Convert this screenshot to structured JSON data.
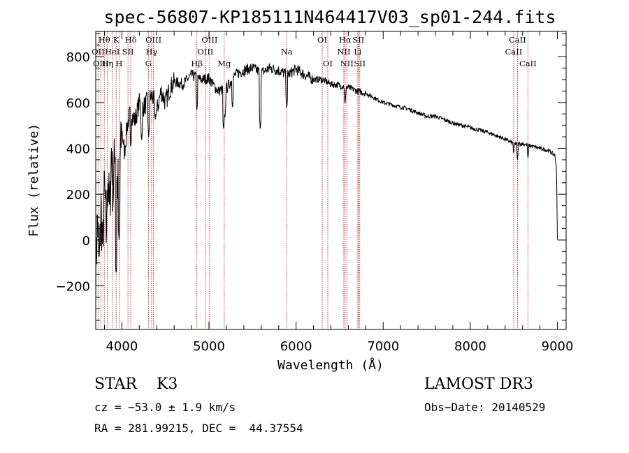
{
  "chart_data": {
    "type": "line",
    "title": "spec-56807-KP185111N464417V03_sp01-244.fits",
    "xlabel": "Wavelength (Å)",
    "ylabel": "Flux (relative)",
    "xlim": [
      3700,
      9100
    ],
    "ylim": [
      -390,
      910
    ],
    "x_ticks": [
      4000,
      5000,
      6000,
      7000,
      8000,
      9000
    ],
    "x_tick_labels": [
      "4000",
      "5000",
      "6000",
      "7000",
      "8000",
      "9000"
    ],
    "y_ticks": [
      -200,
      0,
      200,
      400,
      600,
      800
    ],
    "y_tick_labels": [
      "−200",
      "0",
      "200",
      "400",
      "600",
      "800"
    ],
    "series": [
      {
        "name": "flux",
        "anchors": [
          [
            3700,
            -150
          ],
          [
            3720,
            100
          ],
          [
            3740,
            -120
          ],
          [
            3760,
            150
          ],
          [
            3780,
            -50
          ],
          [
            3800,
            250
          ],
          [
            3820,
            20
          ],
          [
            3840,
            300
          ],
          [
            3860,
            100
          ],
          [
            3880,
            400
          ],
          [
            3900,
            200
          ],
          [
            3920,
            420
          ],
          [
            3940,
            250
          ],
          [
            3960,
            250
          ],
          [
            3980,
            350
          ],
          [
            4000,
            480
          ],
          [
            4030,
            380
          ],
          [
            4060,
            500
          ],
          [
            4100,
            560
          ],
          [
            4150,
            520
          ],
          [
            4200,
            600
          ],
          [
            4250,
            580
          ],
          [
            4300,
            610
          ],
          [
            4350,
            630
          ],
          [
            4400,
            560
          ],
          [
            4450,
            650
          ],
          [
            4500,
            600
          ],
          [
            4550,
            660
          ],
          [
            4600,
            690
          ],
          [
            4700,
            680
          ],
          [
            4800,
            720
          ],
          [
            4900,
            700
          ],
          [
            5000,
            705
          ],
          [
            5100,
            650
          ],
          [
            5200,
            660
          ],
          [
            5300,
            720
          ],
          [
            5400,
            740
          ],
          [
            5500,
            750
          ],
          [
            5600,
            730
          ],
          [
            5700,
            750
          ],
          [
            5800,
            740
          ],
          [
            5900,
            720
          ],
          [
            6000,
            745
          ],
          [
            6100,
            720
          ],
          [
            6200,
            700
          ],
          [
            6300,
            700
          ],
          [
            6400,
            680
          ],
          [
            6500,
            675
          ],
          [
            6600,
            665
          ],
          [
            6700,
            650
          ],
          [
            6800,
            640
          ],
          [
            6900,
            620
          ],
          [
            7000,
            600
          ],
          [
            7100,
            590
          ],
          [
            7200,
            580
          ],
          [
            7300,
            570
          ],
          [
            7400,
            555
          ],
          [
            7500,
            540
          ],
          [
            7600,
            540
          ],
          [
            7700,
            525
          ],
          [
            7800,
            510
          ],
          [
            7900,
            500
          ],
          [
            8000,
            490
          ],
          [
            8100,
            480
          ],
          [
            8200,
            470
          ],
          [
            8300,
            455
          ],
          [
            8400,
            440
          ],
          [
            8500,
            420
          ],
          [
            8600,
            420
          ],
          [
            8700,
            410
          ],
          [
            8800,
            400
          ],
          [
            8900,
            390
          ],
          [
            8970,
            370
          ],
          [
            8990,
            320
          ],
          [
            9000,
            0
          ]
        ],
        "dips": [
          [
            3934,
            -150
          ],
          [
            3968,
            0
          ],
          [
            4102,
            400
          ],
          [
            4227,
            430
          ],
          [
            4308,
            450
          ],
          [
            4383,
            520
          ],
          [
            4861,
            560
          ],
          [
            5167,
            480
          ],
          [
            5183,
            530
          ],
          [
            5270,
            570
          ],
          [
            5589,
            480
          ],
          [
            5893,
            570
          ],
          [
            6563,
            590
          ],
          [
            8498,
            370
          ],
          [
            8542,
            340
          ],
          [
            8662,
            350
          ]
        ]
      }
    ],
    "reference_lines": [
      {
        "label": "Hθ",
        "x": 3798,
        "row": 0
      },
      {
        "label": "OII",
        "x": 3727,
        "row": 1
      },
      {
        "label": "OIII",
        "x": 3760,
        "row": 2
      },
      {
        "label": "K",
        "x": 3934,
        "row": 0
      },
      {
        "label": "HeI",
        "x": 3889,
        "row": 1
      },
      {
        "label": "Hη",
        "x": 3835,
        "row": 2
      },
      {
        "label": "Hδ",
        "x": 4102,
        "row": 0
      },
      {
        "label": "SII",
        "x": 4070,
        "row": 1
      },
      {
        "label": "H",
        "x": 3968,
        "row": 2
      },
      {
        "label": "OIII",
        "x": 4363,
        "row": 0
      },
      {
        "label": "Hγ",
        "x": 4341,
        "row": 1
      },
      {
        "label": "G",
        "x": 4305,
        "row": 2
      },
      {
        "label": "Hβ",
        "x": 4861,
        "row": 2
      },
      {
        "label": "OIII",
        "x": 5007,
        "row": 0
      },
      {
        "label": "OIII",
        "x": 4959,
        "row": 1
      },
      {
        "label": "Mg",
        "x": 5175,
        "row": 2
      },
      {
        "label": "Na",
        "x": 5893,
        "row": 1
      },
      {
        "label": "OI",
        "x": 6300,
        "row": 0
      },
      {
        "label": "OI",
        "x": 6364,
        "row": 2
      },
      {
        "label": "Hα",
        "x": 6563,
        "row": 0
      },
      {
        "label": "SII",
        "x": 6716,
        "row": 0
      },
      {
        "label": "NII",
        "x": 6548,
        "row": 1
      },
      {
        "label": "Li",
        "x": 6708,
        "row": 1
      },
      {
        "label": "NII",
        "x": 6583,
        "row": 2
      },
      {
        "label": "SII",
        "x": 6731,
        "row": 2
      },
      {
        "label": "CaII",
        "x": 8542,
        "row": 0
      },
      {
        "label": "CaII",
        "x": 8498,
        "row": 1
      },
      {
        "label": "CaII",
        "x": 8662,
        "row": 2
      }
    ],
    "grid": false
  },
  "info": {
    "class_text": "STAR    K3",
    "survey_text": "LAMOST DR3",
    "cz_text": "cz = −53.0 ± 1.9 km/s",
    "obs_date_text": "Obs−Date: 20140529",
    "coords_text": "RA = 281.99215, DEC =  44.37554"
  },
  "colors": {
    "spectrum": "#000000",
    "reference_line": "#b22222"
  }
}
